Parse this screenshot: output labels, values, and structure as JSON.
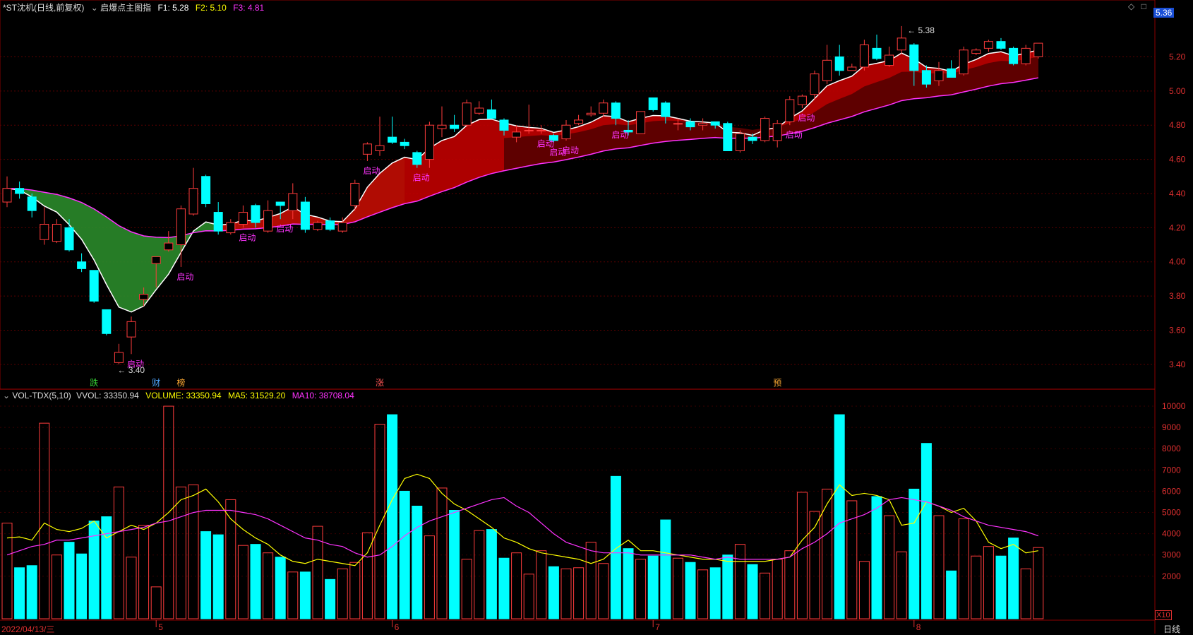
{
  "title": {
    "stock": "*ST沈机(日线,前复权)",
    "indicator": "启爆点主图指",
    "f1_label": "F1: 5.28",
    "f2_label": "F2: 5.10",
    "f3_label": "F3: 4.81"
  },
  "volume_header": {
    "name": "VOL-TDX(5,10)",
    "vvol": "VVOL: 33350.94",
    "volume": "VOLUME: 33350.94",
    "ma5": "MA5: 31529.20",
    "ma10": "MA10: 38708.04"
  },
  "colors": {
    "up": "#ff3c3c",
    "down": "#00ffff",
    "ma5": "#ffff00",
    "ma10": "#ff33ff",
    "green_band": "#2a8a2a",
    "red_band": "#c00000",
    "dark_band": "#5a0000"
  },
  "price_label": "5.36",
  "high_label": "5.38",
  "low_label": "3.40",
  "signal_text": "启动",
  "badges": [
    "跌",
    "财",
    "榜",
    "涨",
    "预"
  ],
  "date_label": "2022/04/13/三",
  "month_labels": [
    "5",
    "6",
    "7",
    "8"
  ],
  "period_label": "日线",
  "vol_scale_label": "X10",
  "chart_data": {
    "type": "candlestick",
    "price_axis": {
      "ylim": [
        3.3,
        5.45
      ],
      "ticks": [
        "5.20",
        "5.00",
        "4.80",
        "4.60",
        "4.40",
        "4.20",
        "4.00",
        "3.80",
        "3.60",
        "3.40"
      ]
    },
    "volume_axis": {
      "ylim": [
        0,
        10500
      ],
      "ticks": [
        "10000",
        "9000",
        "8000",
        "7000",
        "6000",
        "5000",
        "4000",
        "3000",
        "2000"
      ]
    },
    "candles": [
      [
        4.35,
        4.43,
        4.5,
        4.32
      ],
      [
        4.43,
        4.4,
        4.47,
        4.37
      ],
      [
        4.38,
        4.3,
        4.4,
        4.26
      ],
      [
        4.13,
        4.22,
        4.32,
        4.1
      ],
      [
        4.12,
        4.22,
        4.25,
        4.11
      ],
      [
        4.2,
        4.07,
        4.25,
        4.06
      ],
      [
        4.0,
        3.96,
        4.05,
        3.94
      ],
      [
        3.95,
        3.77,
        3.95,
        3.76
      ],
      [
        3.72,
        3.58,
        3.72,
        3.57
      ],
      [
        3.41,
        3.47,
        3.52,
        3.4
      ],
      [
        3.56,
        3.65,
        3.68,
        3.46
      ],
      [
        3.78,
        3.81,
        3.85,
        3.74
      ],
      [
        3.99,
        4.03,
        4.03,
        3.85
      ],
      [
        4.07,
        4.11,
        4.18,
        4.06
      ],
      [
        4.1,
        4.31,
        4.33,
        3.97
      ],
      [
        4.28,
        4.43,
        4.55,
        4.27
      ],
      [
        4.5,
        4.34,
        4.51,
        4.32
      ],
      [
        4.29,
        4.18,
        4.35,
        4.16
      ],
      [
        4.17,
        4.23,
        4.25,
        4.16
      ],
      [
        4.22,
        4.29,
        4.33,
        4.2
      ],
      [
        4.33,
        4.23,
        4.34,
        4.2
      ],
      [
        4.18,
        4.3,
        4.36,
        4.17
      ],
      [
        4.35,
        4.33,
        4.35,
        4.25
      ],
      [
        4.3,
        4.4,
        4.46,
        4.25
      ],
      [
        4.35,
        4.19,
        4.38,
        4.17
      ],
      [
        4.19,
        4.23,
        4.24,
        4.18
      ],
      [
        4.24,
        4.19,
        4.26,
        4.18
      ],
      [
        4.18,
        4.23,
        4.26,
        4.17
      ],
      [
        4.33,
        4.46,
        4.48,
        4.3
      ],
      [
        4.63,
        4.69,
        4.7,
        4.59
      ],
      [
        4.65,
        4.68,
        4.85,
        4.62
      ],
      [
        4.73,
        4.7,
        4.85,
        4.69
      ],
      [
        4.7,
        4.68,
        4.72,
        4.66
      ],
      [
        4.64,
        4.57,
        4.65,
        4.55
      ],
      [
        4.6,
        4.8,
        4.82,
        4.55
      ],
      [
        4.78,
        4.8,
        4.91,
        4.73
      ],
      [
        4.8,
        4.78,
        4.86,
        4.76
      ],
      [
        4.8,
        4.93,
        4.95,
        4.79
      ],
      [
        4.87,
        4.9,
        4.94,
        4.86
      ],
      [
        4.89,
        4.84,
        4.95,
        4.84
      ],
      [
        4.83,
        4.77,
        4.84,
        4.74
      ],
      [
        4.73,
        4.76,
        4.8,
        4.7
      ],
      [
        4.77,
        4.77,
        4.92,
        4.75
      ],
      [
        4.77,
        4.77,
        4.8,
        4.75
      ],
      [
        4.74,
        4.71,
        4.75,
        4.7
      ],
      [
        4.72,
        4.8,
        4.83,
        4.71
      ],
      [
        4.81,
        4.83,
        4.86,
        4.8
      ],
      [
        4.86,
        4.87,
        4.91,
        4.85
      ],
      [
        4.87,
        4.93,
        4.95,
        4.85
      ],
      [
        4.93,
        4.84,
        4.94,
        4.8
      ],
      [
        4.77,
        4.76,
        4.83,
        4.74
      ],
      [
        4.75,
        4.88,
        4.88,
        4.75
      ],
      [
        4.96,
        4.89,
        4.96,
        4.88
      ],
      [
        4.93,
        4.85,
        4.94,
        4.81
      ],
      [
        4.81,
        4.81,
        4.84,
        4.77
      ],
      [
        4.82,
        4.79,
        4.84,
        4.77
      ],
      [
        4.8,
        4.81,
        4.84,
        4.77
      ],
      [
        4.82,
        4.8,
        4.82,
        4.78
      ],
      [
        4.81,
        4.65,
        4.82,
        4.65
      ],
      [
        4.65,
        4.75,
        4.77,
        4.64
      ],
      [
        4.73,
        4.71,
        4.75,
        4.69
      ],
      [
        4.71,
        4.84,
        4.85,
        4.7
      ],
      [
        4.71,
        4.81,
        4.83,
        4.67
      ],
      [
        4.82,
        4.95,
        4.97,
        4.8
      ],
      [
        4.92,
        4.97,
        4.98,
        4.9
      ],
      [
        4.98,
        5.1,
        5.12,
        4.95
      ],
      [
        5.06,
        5.18,
        5.27,
        5.04
      ],
      [
        5.2,
        5.12,
        5.27,
        5.09
      ],
      [
        5.12,
        5.14,
        5.16,
        5.12
      ],
      [
        5.14,
        5.27,
        5.3,
        5.12
      ],
      [
        5.25,
        5.19,
        5.33,
        5.18
      ],
      [
        5.15,
        5.21,
        5.26,
        5.14
      ],
      [
        5.24,
        5.31,
        5.38,
        5.22
      ],
      [
        5.27,
        5.12,
        5.28,
        5.03
      ],
      [
        5.12,
        5.04,
        5.15,
        5.02
      ],
      [
        5.06,
        5.12,
        5.17,
        5.03
      ],
      [
        5.13,
        5.08,
        5.18,
        5.08
      ],
      [
        5.1,
        5.24,
        5.26,
        5.09
      ],
      [
        5.22,
        5.24,
        5.25,
        5.21
      ],
      [
        5.25,
        5.29,
        5.3,
        5.23
      ],
      [
        5.29,
        5.25,
        5.31,
        5.24
      ],
      [
        5.25,
        5.16,
        5.26,
        5.15
      ],
      [
        5.16,
        5.25,
        5.27,
        5.15
      ],
      [
        5.2,
        5.28,
        5.28,
        5.19
      ]
    ],
    "volume": [
      4500,
      2400,
      2500,
      9200,
      3000,
      3600,
      3050,
      4600,
      4800,
      6200,
      2900,
      4400,
      1500,
      10000,
      6200,
      6300,
      4100,
      3950,
      5600,
      3450,
      3500,
      3100,
      2900,
      2200,
      2200,
      4350,
      1850,
      2350,
      2650,
      4050,
      9150,
      9600,
      6000,
      5300,
      3900,
      6150,
      5100,
      2800,
      4150,
      4200,
      2850,
      3100,
      2100,
      3200,
      2450,
      2350,
      2400,
      3600,
      2600,
      6700,
      3300,
      2800,
      2950,
      4650,
      2850,
      2650,
      2300,
      2400,
      3000,
      3500,
      2550,
      2150,
      2800,
      3200,
      5950,
      5050,
      6100,
      9600,
      5550,
      2700,
      5750,
      4850,
      3150,
      6100,
      8250,
      4850,
      2250,
      4700,
      2950,
      3400,
      2950,
      3800,
      2350,
      3350
    ],
    "ma5": [
      3800,
      3850,
      3700,
      4500,
      4200,
      4100,
      4250,
      4600,
      3800,
      4100,
      4400,
      4200,
      4500,
      5000,
      5600,
      5800,
      6100,
      5500,
      4700,
      4200,
      3800,
      3500,
      3000,
      2700,
      2600,
      2800,
      2700,
      2600,
      2500,
      3100,
      4400,
      5600,
      6600,
      6800,
      6600,
      5900,
      5400,
      5100,
      4700,
      4300,
      3800,
      3600,
      3300,
      3100,
      3000,
      2900,
      2800,
      2600,
      2800,
      3300,
      3700,
      3200,
      3200,
      3100,
      3000,
      2900,
      2800,
      2800,
      2700,
      2700,
      2700,
      2700,
      2800,
      2900,
      3700,
      4300,
      5400,
      6300,
      5800,
      5900,
      5800,
      5600,
      4400,
      4500,
      5500,
      5300,
      5000,
      5200,
      4600,
      3600,
      3300,
      3500,
      3100,
      3200
    ],
    "ma10": [
      3000,
      3200,
      3400,
      3500,
      3700,
      3700,
      3800,
      3900,
      4000,
      4100,
      4200,
      4300,
      4500,
      4600,
      4800,
      5000,
      5100,
      5100,
      5100,
      5000,
      4900,
      4700,
      4400,
      4100,
      3800,
      3700,
      3500,
      3400,
      3100,
      2900,
      3000,
      3400,
      3900,
      4300,
      4600,
      4800,
      5000,
      5200,
      5400,
      5600,
      5700,
      5300,
      5000,
      4500,
      4000,
      3600,
      3400,
      3200,
      3100,
      3100,
      3100,
      3000,
      3000,
      3000,
      3000,
      3000,
      2900,
      2800,
      2900,
      2800,
      2800,
      2800,
      2800,
      2900,
      3300,
      3600,
      4000,
      4500,
      4700,
      4900,
      5200,
      5600,
      5700,
      5600,
      5500,
      5300,
      5100,
      4800,
      4600,
      4400,
      4300,
      4200,
      4100,
      3900
    ]
  }
}
